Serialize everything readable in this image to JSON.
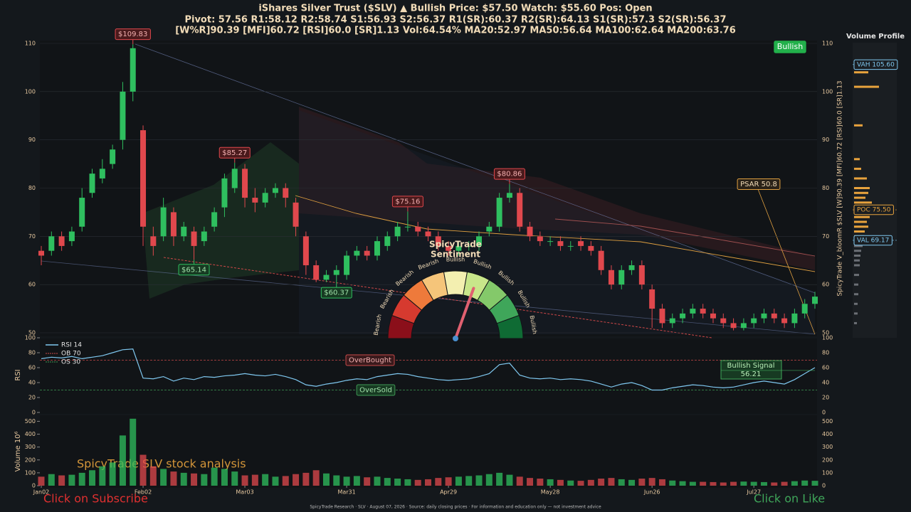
{
  "header": {
    "lines": [
      "iShares Silver Trust  ($SLV)   ▲ Bullish   Price: $57.50   Watch: $55.60   Pos: Open",
      "Pivot: 57.56  R1:58.12  R2:58.74  S1:56.93  S2:56.37  R1(SR):60.37  R2(SR):64.13  S1(SR):57.3  S2(SR):56.37",
      "[W%R]90.39  [MFI]60.72  [RSI]60.0  [SR]1.13  Vol:64.54%  MA20:52.97  MA50:56.64  MA100:62.64  MA200:63.76"
    ]
  },
  "overlay": {
    "caption": "SpicyTrade SLV stock analysis",
    "subscribe": "Click on Subscribe",
    "like": "Click on Like",
    "footer": "SpicyTrade Research  ·  SLV  ·  August 07, 2026  ·  Source: daily closing prices  ·  For information and education only — not investment advice"
  },
  "chart_data": [
    {
      "type": "candlestick",
      "signal": "Bullish",
      "right_label": "SpicyTrade V_bloomR $SLV [W]90.39 [MFI]60.72 [RSI]60.0 [SR]1.13",
      "psar_label": "PSAR 50.8",
      "up_color": "#2fbf5f",
      "down_color": "#e0484d",
      "grid": true,
      "ylim": [
        50,
        110
      ],
      "yticks": [
        50,
        60,
        70,
        80,
        90,
        100,
        110
      ],
      "open": [
        67,
        67,
        70,
        69,
        72,
        79,
        82,
        85,
        90,
        100,
        92,
        70,
        70,
        75,
        70,
        71,
        69,
        72,
        76,
        80,
        84,
        78,
        77,
        79,
        80,
        77,
        70,
        64,
        61,
        62,
        62,
        66,
        67,
        66,
        68,
        70,
        72,
        72,
        71,
        70,
        68,
        67,
        68,
        68,
        71,
        72,
        78,
        79,
        72,
        70,
        69,
        69,
        68,
        69,
        68,
        67,
        63,
        60,
        63,
        64,
        59,
        55,
        52,
        53,
        54,
        55,
        54,
        53,
        52,
        51,
        52,
        53,
        54,
        53,
        52,
        54,
        56
      ],
      "high": [
        68,
        71,
        71,
        72,
        80,
        84,
        86,
        89,
        102,
        109.83,
        93,
        72,
        78,
        76,
        73,
        72,
        72,
        76,
        83,
        85.27,
        85,
        80,
        80,
        81,
        81,
        78,
        71,
        65,
        63,
        64,
        67,
        68,
        68,
        70,
        71,
        73,
        75.16,
        73,
        72,
        71,
        69,
        69,
        69,
        71,
        73,
        79,
        80.86,
        80,
        73,
        71,
        70,
        70,
        69,
        70,
        69,
        68,
        64,
        64,
        65,
        65,
        60,
        56,
        54,
        55,
        56,
        56,
        55,
        54,
        53,
        53,
        54,
        55,
        55,
        54,
        55,
        57,
        58.5
      ],
      "low": [
        64,
        66,
        67,
        68,
        71,
        78,
        81,
        84,
        88,
        98,
        68,
        66,
        69,
        68,
        69,
        65.14,
        68,
        71,
        74,
        79,
        76,
        75,
        76,
        78,
        76,
        70,
        62,
        60.5,
        60.5,
        60.37,
        61,
        65,
        65,
        65,
        67,
        69,
        71,
        70,
        69,
        67,
        66,
        66,
        67,
        67,
        70,
        71,
        77,
        71,
        69,
        68,
        68,
        67,
        67,
        67,
        66,
        62,
        59,
        59,
        62,
        59,
        51,
        51,
        51,
        52,
        53,
        53,
        52,
        51,
        50.5,
        50.5,
        51,
        52,
        52,
        51,
        51,
        53,
        55
      ],
      "close": [
        66,
        70,
        68,
        71,
        78,
        83,
        84,
        88,
        100,
        109,
        72,
        68,
        76,
        70,
        72,
        68,
        71,
        75,
        82,
        84,
        78,
        77,
        79,
        80,
        78,
        72,
        64,
        61,
        62,
        63,
        66,
        67,
        66,
        69,
        70,
        72,
        72,
        71,
        70,
        68,
        67,
        68,
        68,
        70,
        72,
        78,
        79,
        72,
        70,
        69,
        69,
        68,
        68,
        68,
        67,
        63,
        60,
        63,
        64,
        60,
        55,
        52,
        53,
        54,
        55,
        54,
        53,
        52,
        51,
        52,
        53,
        54,
        53,
        52,
        54,
        56,
        57.5
      ],
      "annotations": [
        {
          "label": "$109.83",
          "value": 109.83
        },
        {
          "label": "$85.27",
          "value": 85.27
        },
        {
          "label": "$65.14",
          "value": 65.14
        },
        {
          "label": "$60.37",
          "value": 60.37
        },
        {
          "label": "$75.16",
          "value": 75.16
        },
        {
          "label": "$80.86",
          "value": 80.86
        }
      ]
    },
    {
      "type": "line",
      "ylabel": "RSI",
      "ylim": [
        0,
        100
      ],
      "yticks": [
        0,
        20,
        40,
        60,
        80,
        100
      ],
      "series": [
        {
          "name": "RSI 14",
          "color": "#7fc8f0",
          "values": [
            72,
            74,
            73,
            75,
            72,
            74,
            76,
            80,
            84,
            85,
            46,
            45,
            48,
            42,
            46,
            44,
            48,
            47,
            49,
            50,
            52,
            50,
            49,
            51,
            48,
            44,
            37,
            35,
            38,
            40,
            43,
            45,
            44,
            48,
            50,
            52,
            51,
            48,
            46,
            44,
            43,
            44,
            45,
            48,
            52,
            64,
            66,
            50,
            46,
            45,
            46,
            44,
            45,
            44,
            42,
            38,
            34,
            38,
            40,
            36,
            30,
            30,
            33,
            35,
            37,
            36,
            34,
            33,
            34,
            37,
            40,
            42,
            40,
            38,
            44,
            52,
            60
          ]
        }
      ],
      "reference_lines": [
        {
          "name": "OB 70",
          "value": 70,
          "color": "#c94a4a",
          "note": "OverBought"
        },
        {
          "name": "OS 30",
          "value": 30,
          "color": "#3f9a55",
          "note": "OverSold"
        }
      ],
      "signal": {
        "label": "Bullish Signal",
        "value": 56.21
      }
    },
    {
      "type": "bar",
      "ylabel": "Volume 10⁶",
      "ylim": [
        0,
        530
      ],
      "yticks": [
        0,
        100,
        200,
        300,
        400,
        500
      ],
      "categories": [
        "Jan02",
        null,
        null,
        null,
        null,
        null,
        null,
        null,
        null,
        null,
        "Feb02",
        null,
        null,
        null,
        null,
        null,
        null,
        null,
        null,
        null,
        "Mar03",
        null,
        null,
        null,
        null,
        null,
        null,
        null,
        null,
        null,
        "Mar31",
        null,
        null,
        null,
        null,
        null,
        null,
        null,
        null,
        null,
        "Apr29",
        null,
        null,
        null,
        null,
        null,
        null,
        null,
        null,
        null,
        "May28",
        null,
        null,
        null,
        null,
        null,
        null,
        null,
        null,
        null,
        "Jun26",
        null,
        null,
        null,
        null,
        null,
        null,
        null,
        null,
        null,
        "Jul27",
        null,
        null,
        null,
        null,
        null,
        null
      ],
      "values": [
        70,
        90,
        80,
        85,
        100,
        120,
        150,
        180,
        390,
        520,
        240,
        150,
        130,
        110,
        100,
        95,
        90,
        140,
        130,
        110,
        80,
        85,
        90,
        70,
        75,
        90,
        100,
        120,
        95,
        80,
        70,
        75,
        65,
        70,
        60,
        55,
        50,
        45,
        50,
        60,
        65,
        70,
        75,
        80,
        90,
        100,
        85,
        70,
        60,
        55,
        50,
        45,
        40,
        38,
        45,
        55,
        60,
        50,
        45,
        55,
        60,
        50,
        40,
        35,
        30,
        30,
        28,
        25,
        30,
        32,
        30,
        28,
        25,
        30,
        35,
        40,
        38
      ]
    },
    {
      "type": "gauge",
      "title": [
        "SpicyTrade",
        "Sentiment"
      ],
      "value": 61,
      "range": [
        0,
        100
      ],
      "labels": [
        "Bearish",
        "Bearish",
        "Bearish",
        "Bearish",
        "Bullish",
        "Bullish",
        "Bullish",
        "Bullish",
        "Bullish"
      ],
      "colors": [
        "#8b0f1a",
        "#d63a2f",
        "#ee7a3b",
        "#f5c57a",
        "#f3efb0",
        "#c8e68a",
        "#84c96a",
        "#3fa65a",
        "#0f6b34"
      ]
    },
    {
      "type": "volume_profile",
      "title": "Volume Profile",
      "levels": [
        104,
        101,
        93,
        86,
        84,
        82,
        80,
        79,
        78,
        77,
        76,
        75.5,
        75,
        74,
        73,
        72,
        71,
        70,
        69,
        68,
        67,
        66,
        65,
        64,
        62,
        60,
        58,
        56,
        54,
        52
      ],
      "values": [
        20,
        35,
        12,
        8,
        10,
        18,
        22,
        20,
        16,
        25,
        30,
        40,
        28,
        22,
        18,
        20,
        15,
        14,
        20,
        12,
        10,
        9,
        8,
        8,
        7,
        6,
        6,
        5,
        5,
        4
      ],
      "color": "#e8a33d",
      "low_color": "#6b6f75",
      "markers": [
        {
          "label": "VAH 105.60",
          "value": 105.6,
          "color": "#7fc8f0"
        },
        {
          "label": "POC 75.50",
          "value": 75.5,
          "color": "#e8a33d"
        },
        {
          "label": "VAL 69.17",
          "value": 69.17,
          "color": "#7fc8f0"
        }
      ]
    }
  ]
}
